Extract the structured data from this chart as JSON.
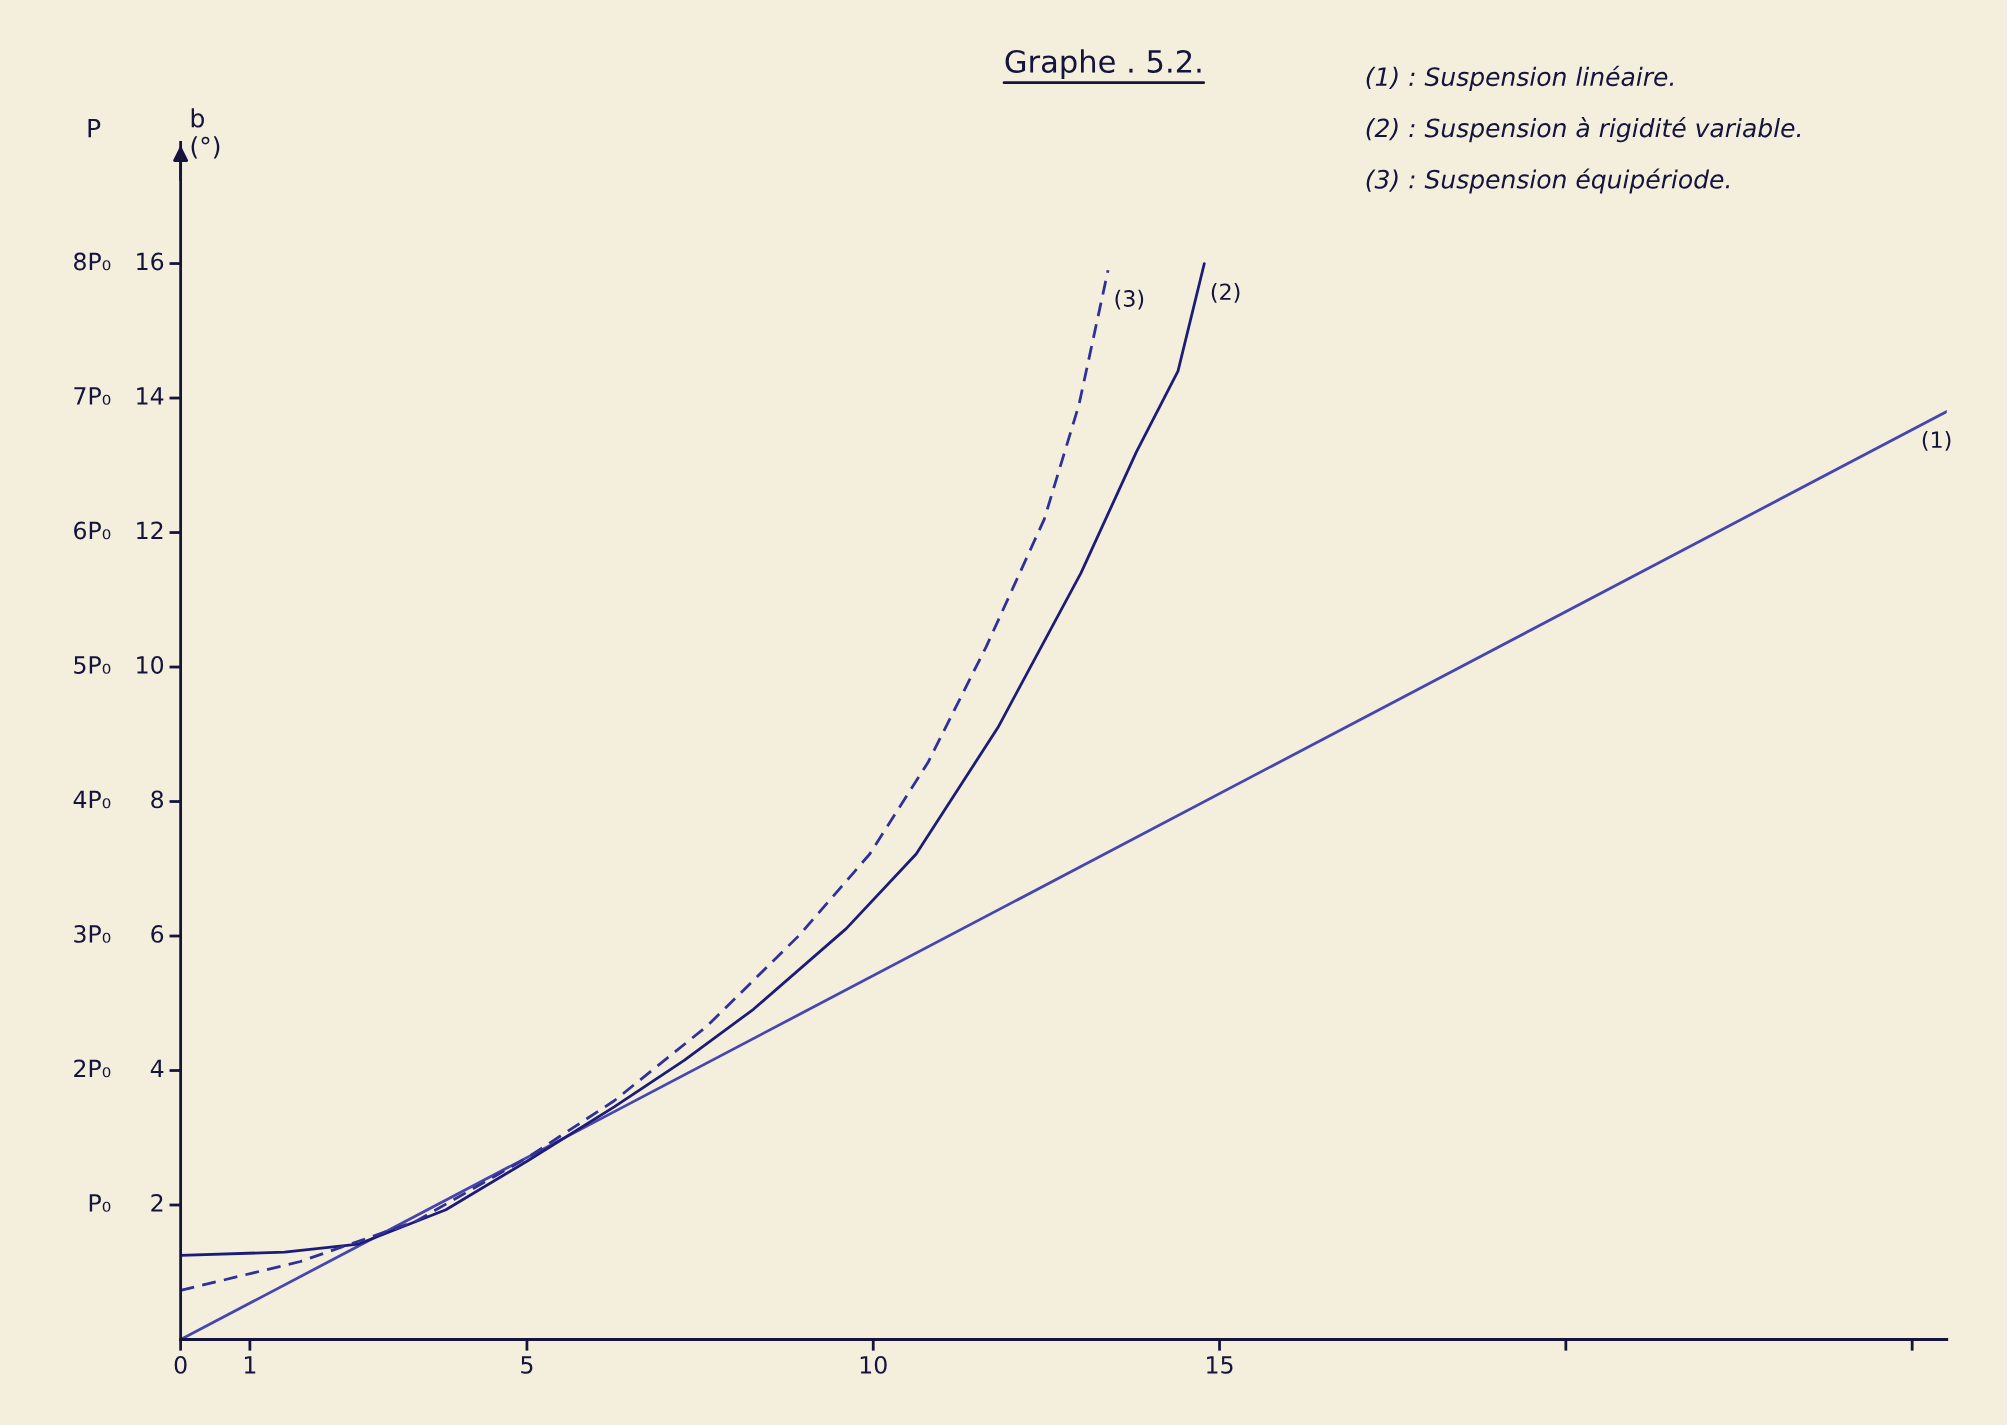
{
  "chart_data": {
    "type": "line",
    "title": "Graphe . 5.2.",
    "ylabel": "b\n(°)",
    "y2label": "P",
    "series": [
      {
        "name": "(1)",
        "color": "#4646b0",
        "line_style": "solid",
        "x": [
          0,
          25.5
        ],
        "values": [
          0,
          13.8
        ]
      },
      {
        "name": "(2)",
        "color": "#1c1c78",
        "line_style": "solid",
        "x": [
          0,
          1.5,
          2.57,
          3.83,
          5,
          6.26,
          7.27,
          8.27,
          9.61,
          10.62,
          11.8,
          13.0,
          13.8,
          14.4,
          14.78
        ],
        "values": [
          1.25,
          1.3,
          1.42,
          1.93,
          2.65,
          3.46,
          4.15,
          4.91,
          6.11,
          7.22,
          9.1,
          11.4,
          13.2,
          14.4,
          16.0
        ]
      },
      {
        "name": "(3)",
        "color": "#30309a",
        "line_style": "dashed",
        "x": [
          0,
          1.73,
          3.4,
          5,
          6.26,
          7.6,
          8.94,
          9.95,
          10.79,
          11.63,
          12.47,
          12.97,
          13.39
        ],
        "values": [
          0.73,
          1.16,
          1.76,
          2.7,
          3.55,
          4.66,
          6.02,
          7.22,
          8.58,
          10.3,
          12.2,
          13.9,
          15.9
        ]
      }
    ],
    "xlim": [
      0,
      25.5
    ],
    "ylim": [
      0,
      17.8
    ],
    "y2lim": [
      0,
      8.9
    ],
    "xticks": [
      0,
      1,
      5,
      10,
      15,
      {
        "value": 20,
        "label": null
      },
      {
        "value": 25,
        "label": null
      }
    ],
    "yticks": [
      2,
      4,
      6,
      8,
      10,
      12,
      14,
      16
    ],
    "y2ticks": [
      {
        "value": 1,
        "label": "P₀"
      },
      {
        "value": 2,
        "label": "2P₀"
      },
      {
        "value": 3,
        "label": "3P₀"
      },
      {
        "value": 4,
        "label": "4P₀"
      },
      {
        "value": 5,
        "label": "5P₀"
      },
      {
        "value": 6,
        "label": "6P₀"
      },
      {
        "value": 7,
        "label": "7P₀"
      },
      {
        "value": 8,
        "label": "8P₀"
      }
    ],
    "annotations": [
      "(1) : Suspension linéaire.",
      "(2) : Suspension à rigidité variable.",
      "(3) : Suspension équipériode."
    ],
    "grid": false,
    "legend": false
  }
}
